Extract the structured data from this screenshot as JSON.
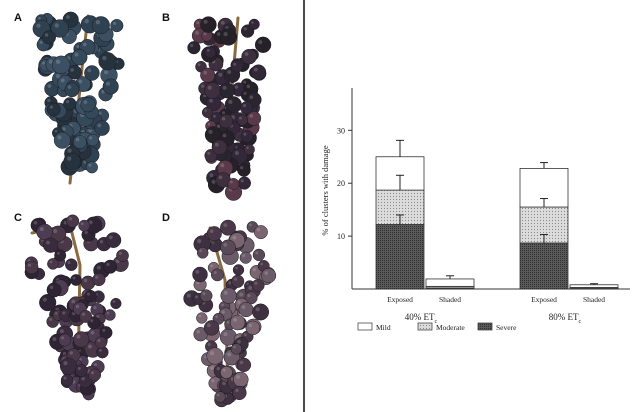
{
  "panels": {
    "a": {
      "letter": "A",
      "description": "exposed grape cluster, healthy dark-blue berries"
    },
    "b": {
      "letter": "B",
      "description": "grape cluster, dark purple berries"
    },
    "c": {
      "letter": "C",
      "description": "grape cluster with shrivelled berries"
    },
    "d": {
      "letter": "D",
      "description": "grape cluster, severe sunburn damage"
    }
  },
  "colors": {
    "berry_blue": "#34495a",
    "berry_dark": "#2b2530",
    "berry_purple": "#4a3848",
    "stem": "#8a6a42",
    "axis": "#333333"
  },
  "chart_data": {
    "type": "bar",
    "stacked": true,
    "ylabel": "% of clusters with damage",
    "ylim": [
      0,
      38
    ],
    "yticks": [
      10,
      20,
      30
    ],
    "grid": false,
    "legend_position": "bottom",
    "legend": [
      {
        "name": "Mild",
        "pattern": "white"
      },
      {
        "name": "Moderate",
        "pattern": "dotted"
      },
      {
        "name": "Severe",
        "pattern": "dense"
      }
    ],
    "groups": [
      {
        "label_main": "40% ET",
        "label_sub": "c",
        "bars": [
          {
            "category": "Exposed",
            "severe": 12.2,
            "moderate": 6.5,
            "mild": 6.3,
            "err_severe": 1.8,
            "err_moderate": 2.8,
            "err_total": 3.1
          },
          {
            "category": "Shaded",
            "severe": 0.2,
            "moderate": 0.3,
            "mild": 1.4,
            "err_total": 0.6
          }
        ]
      },
      {
        "label_main": "80% ET",
        "label_sub": "c",
        "bars": [
          {
            "category": "Exposed",
            "severe": 8.7,
            "moderate": 6.8,
            "mild": 7.3,
            "err_severe": 1.6,
            "err_moderate": 1.6,
            "err_total": 1.1
          },
          {
            "category": "Shaded",
            "severe": 0.1,
            "moderate": 0.2,
            "mild": 0.5,
            "err_total": 0.2
          }
        ]
      }
    ]
  }
}
